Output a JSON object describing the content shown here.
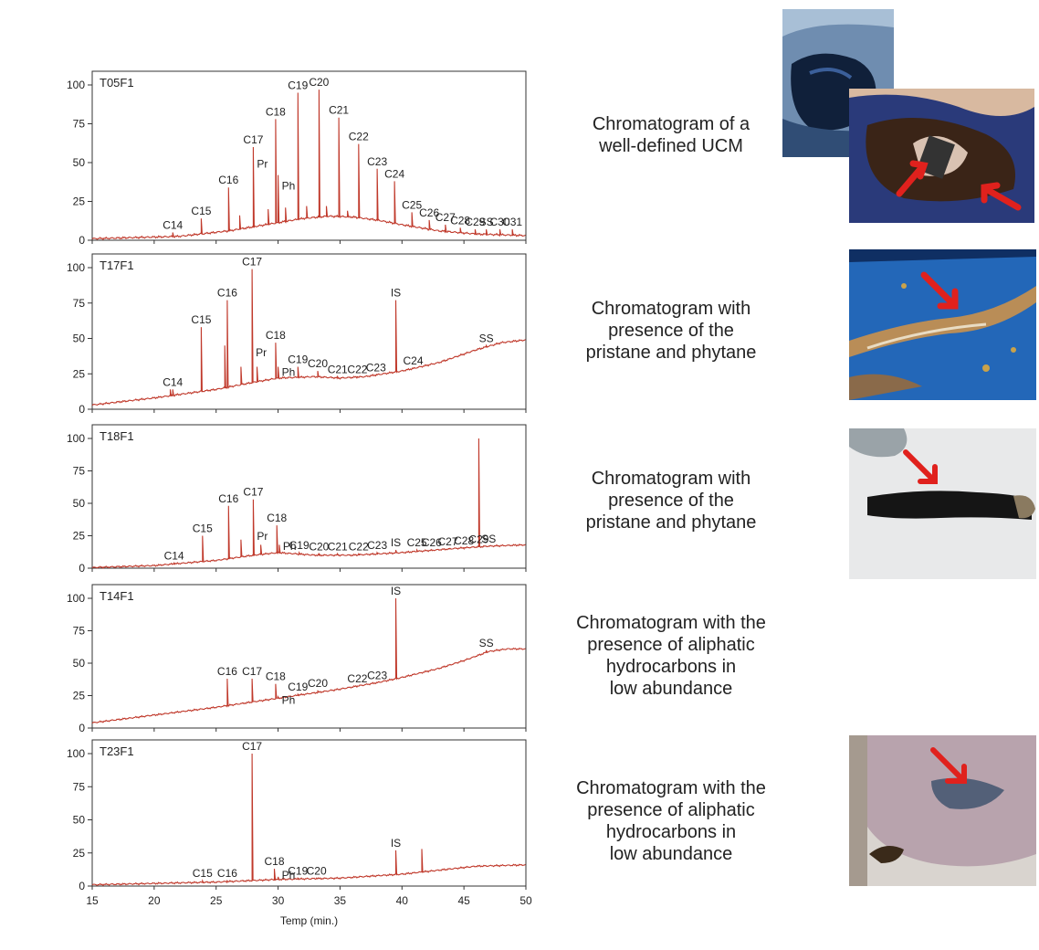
{
  "figure": {
    "xlabel": "Temp (min.)",
    "x_ticks": [
      15,
      20,
      25,
      30,
      35,
      40,
      45,
      50
    ],
    "y_ticks": [
      0,
      25,
      50,
      75,
      100
    ],
    "line_color": "#c0392b"
  },
  "chart_data": [
    {
      "type": "line",
      "sample": "T05F1",
      "xlabel": "",
      "xlim": [
        15,
        50
      ],
      "ylim": [
        0,
        100
      ],
      "baseline": [
        [
          15,
          1
        ],
        [
          22,
          2.5
        ],
        [
          26,
          6
        ],
        [
          29,
          10
        ],
        [
          32,
          14
        ],
        [
          34,
          15.5
        ],
        [
          36,
          15
        ],
        [
          38,
          13
        ],
        [
          40,
          10
        ],
        [
          43,
          6
        ],
        [
          46,
          4
        ],
        [
          50,
          3
        ]
      ],
      "peaks": [
        {
          "label": "C14",
          "x": 21.5,
          "y": 5
        },
        {
          "label": "C15",
          "x": 23.8,
          "y": 14
        },
        {
          "label": "C16",
          "x": 26.0,
          "y": 34
        },
        {
          "label": "Pr",
          "x": 28.0,
          "y": 60
        },
        {
          "label": "C17",
          "x": 28.0,
          "y": 60
        },
        {
          "label": "C18",
          "x": 29.8,
          "y": 78
        },
        {
          "label": "Ph",
          "x": 30.0,
          "y": 42
        },
        {
          "label": "C19",
          "x": 31.6,
          "y": 95
        },
        {
          "label": "C20",
          "x": 33.3,
          "y": 97
        },
        {
          "label": "C21",
          "x": 34.9,
          "y": 79
        },
        {
          "label": "C22",
          "x": 36.5,
          "y": 62
        },
        {
          "label": "C23",
          "x": 38.0,
          "y": 46
        },
        {
          "label": "C24",
          "x": 39.4,
          "y": 38
        },
        {
          "label": "C25",
          "x": 40.8,
          "y": 18
        },
        {
          "label": "C26",
          "x": 42.2,
          "y": 13
        },
        {
          "label": "C27",
          "x": 43.5,
          "y": 10
        },
        {
          "label": "C28",
          "x": 44.7,
          "y": 8
        },
        {
          "label": "C29",
          "x": 45.9,
          "y": 7
        },
        {
          "label": "SS",
          "x": 46.8,
          "y": 7
        },
        {
          "label": "C30",
          "x": 47.9,
          "y": 7
        },
        {
          "label": "C31",
          "x": 48.9,
          "y": 7
        }
      ],
      "extra_peaks": [
        [
          26.9,
          16
        ],
        [
          29.2,
          20
        ],
        [
          30.6,
          21
        ],
        [
          32.3,
          22
        ],
        [
          33.9,
          22
        ],
        [
          35.6,
          19
        ]
      ]
    },
    {
      "type": "line",
      "sample": "T17F1",
      "xlabel": "",
      "xlim": [
        15,
        50
      ],
      "ylim": [
        0,
        100
      ],
      "baseline": [
        [
          15,
          3
        ],
        [
          20,
          8
        ],
        [
          25,
          14
        ],
        [
          28,
          19
        ],
        [
          30,
          22
        ],
        [
          33,
          23
        ],
        [
          35,
          22
        ],
        [
          37,
          23
        ],
        [
          40,
          27
        ],
        [
          43,
          33
        ],
        [
          46,
          42
        ],
        [
          48,
          47
        ],
        [
          50,
          49
        ]
      ],
      "peaks": [
        {
          "label": "C14",
          "x": 21.5,
          "y": 14
        },
        {
          "label": "C15",
          "x": 23.8,
          "y": 58
        },
        {
          "label": "C16",
          "x": 25.9,
          "y": 77
        },
        {
          "label": "Pr",
          "x": 27.9,
          "y": 48
        },
        {
          "label": "C17",
          "x": 27.9,
          "y": 99
        },
        {
          "label": "C18",
          "x": 29.8,
          "y": 47
        },
        {
          "label": "Ph",
          "x": 30.0,
          "y": 30
        },
        {
          "label": "C19",
          "x": 31.6,
          "y": 30
        },
        {
          "label": "C20",
          "x": 33.2,
          "y": 27
        },
        {
          "label": "C21",
          "x": 34.8,
          "y": 23
        },
        {
          "label": "C22",
          "x": 36.4,
          "y": 23
        },
        {
          "label": "C23",
          "x": 37.9,
          "y": 23
        },
        {
          "label": "IS",
          "x": 39.5,
          "y": 77
        },
        {
          "label": "C24",
          "x": 40.9,
          "y": 29
        },
        {
          "label": "SS",
          "x": 46.8,
          "y": 45
        }
      ],
      "extra_peaks": [
        [
          21.3,
          14
        ],
        [
          25.7,
          45
        ],
        [
          27.0,
          30
        ],
        [
          28.3,
          30
        ]
      ]
    },
    {
      "type": "line",
      "sample": "T18F1",
      "xlabel": "",
      "xlim": [
        15,
        50
      ],
      "ylim": [
        0,
        100
      ],
      "baseline": [
        [
          15,
          0.5
        ],
        [
          20,
          2
        ],
        [
          25,
          6
        ],
        [
          28,
          10
        ],
        [
          30,
          12
        ],
        [
          33,
          10
        ],
        [
          36,
          10
        ],
        [
          40,
          12
        ],
        [
          44,
          15
        ],
        [
          47,
          17
        ],
        [
          50,
          18
        ]
      ],
      "peaks": [
        {
          "label": "C14",
          "x": 21.6,
          "y": 4
        },
        {
          "label": "C15",
          "x": 23.9,
          "y": 25
        },
        {
          "label": "C16",
          "x": 26.0,
          "y": 48
        },
        {
          "label": "Pr",
          "x": 28.0,
          "y": 28
        },
        {
          "label": "C17",
          "x": 28.0,
          "y": 53
        },
        {
          "label": "C18",
          "x": 29.9,
          "y": 33
        },
        {
          "label": "Ph",
          "x": 30.1,
          "y": 18
        },
        {
          "label": "C19",
          "x": 31.7,
          "y": 12
        },
        {
          "label": "C20",
          "x": 33.3,
          "y": 11
        },
        {
          "label": "C21",
          "x": 34.8,
          "y": 11
        },
        {
          "label": "C22",
          "x": 36.5,
          "y": 11
        },
        {
          "label": "C23",
          "x": 38.0,
          "y": 12
        },
        {
          "label": "IS",
          "x": 39.5,
          "y": 14
        },
        {
          "label": "C25",
          "x": 41.2,
          "y": 14
        },
        {
          "label": "C26",
          "x": 42.4,
          "y": 14
        },
        {
          "label": "C27",
          "x": 43.7,
          "y": 14
        },
        {
          "label": "C28",
          "x": 45.0,
          "y": 15
        },
        {
          "label": "C29",
          "x": 46.2,
          "y": 15
        },
        {
          "label": "SS",
          "x": 47.0,
          "y": 15
        }
      ],
      "extra_peaks": [
        [
          46.2,
          100
        ],
        [
          27.0,
          22
        ],
        [
          28.6,
          18
        ]
      ]
    },
    {
      "type": "line",
      "sample": "T14F1",
      "xlabel": "",
      "xlim": [
        15,
        50
      ],
      "ylim": [
        0,
        100
      ],
      "baseline": [
        [
          15,
          4
        ],
        [
          20,
          10
        ],
        [
          25,
          16
        ],
        [
          30,
          23
        ],
        [
          35,
          30
        ],
        [
          38,
          35
        ],
        [
          40,
          39
        ],
        [
          43,
          46
        ],
        [
          45,
          52
        ],
        [
          47,
          59
        ],
        [
          48.5,
          61
        ],
        [
          50,
          61
        ]
      ],
      "peaks": [
        {
          "label": "C16",
          "x": 25.9,
          "y": 38
        },
        {
          "label": "C17",
          "x": 27.9,
          "y": 38
        },
        {
          "label": "C18",
          "x": 29.8,
          "y": 34
        },
        {
          "label": "Ph",
          "x": 30.0,
          "y": 24
        },
        {
          "label": "C19",
          "x": 31.6,
          "y": 26
        },
        {
          "label": "C20",
          "x": 33.2,
          "y": 29
        },
        {
          "label": "C22",
          "x": 36.4,
          "y": 32
        },
        {
          "label": "C23",
          "x": 38.0,
          "y": 34
        },
        {
          "label": "IS",
          "x": 39.5,
          "y": 100
        },
        {
          "label": "SS",
          "x": 46.8,
          "y": 60
        }
      ],
      "extra_peaks": []
    },
    {
      "type": "line",
      "sample": "T23F1",
      "xlabel": "Temp (min.)",
      "xlim": [
        15,
        50
      ],
      "ylim": [
        0,
        100
      ],
      "baseline": [
        [
          15,
          1
        ],
        [
          25,
          3
        ],
        [
          30,
          5
        ],
        [
          35,
          6
        ],
        [
          40,
          9
        ],
        [
          43,
          12
        ],
        [
          46,
          15
        ],
        [
          50,
          16
        ]
      ],
      "peaks": [
        {
          "label": "C15",
          "x": 23.9,
          "y": 4
        },
        {
          "label": "C16",
          "x": 25.9,
          "y": 4
        },
        {
          "label": "C17",
          "x": 27.9,
          "y": 100
        },
        {
          "label": "C18",
          "x": 29.7,
          "y": 13
        },
        {
          "label": "Ph",
          "x": 30.0,
          "y": 7
        },
        {
          "label": "C19",
          "x": 31.6,
          "y": 6
        },
        {
          "label": "C20",
          "x": 33.1,
          "y": 6
        },
        {
          "label": "IS",
          "x": 39.5,
          "y": 27
        },
        {
          "label": "",
          "x": 41.6,
          "y": 28
        }
      ],
      "extra_peaks": []
    }
  ],
  "captions": [
    [
      "Chromatogram of a",
      "well-defined UCM"
    ],
    [
      "Chromatogram with",
      "presence of the",
      "pristane and phytane"
    ],
    [
      "Chromatogram with",
      "presence of the",
      "pristane and phytane"
    ],
    [
      "Chromatogram with the",
      "presence of aliphatic",
      "hydrocarbons in",
      "low abundance"
    ],
    [
      "Chromatogram with the",
      "presence of aliphatic",
      "hydrocarbons in",
      "low abundance"
    ]
  ],
  "photos": [
    {
      "subject": "oil-covered-rock-photo",
      "colors": [
        "#1f3f6e",
        "#0b1526",
        "#7a96b5"
      ]
    },
    {
      "subject": "dissected-turtle-tissue-photo",
      "colors": [
        "#3a2417",
        "#d8b9a0",
        "#2a4f9a"
      ],
      "arrow_color": "#e0211d"
    },
    {
      "subject": "tar-on-blue-tray-photo",
      "colors": [
        "#2367b8",
        "#b98d57",
        "#e9dcc3"
      ],
      "arrow_color": "#e0211d"
    },
    {
      "subject": "black-tar-sample-photo",
      "colors": [
        "#e8e9ea",
        "#151515",
        "#8a7a60"
      ],
      "arrow_color": "#e0211d"
    },
    {
      "subject": "stained-tissue-photo",
      "colors": [
        "#b8a3ad",
        "#3a4f6a",
        "#d9d4cf"
      ],
      "arrow_color": "#e0211d"
    }
  ]
}
